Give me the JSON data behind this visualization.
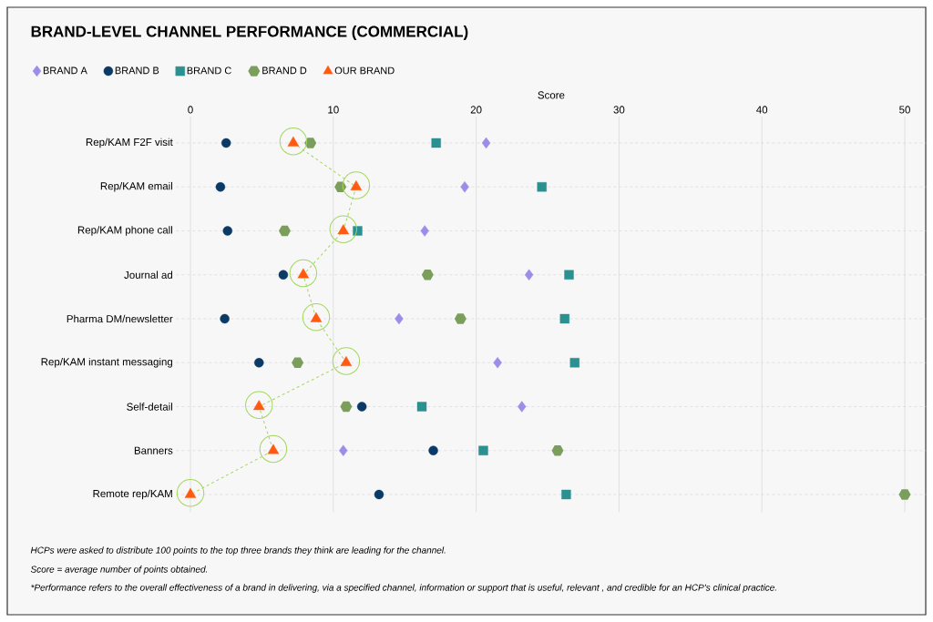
{
  "chart_data": {
    "type": "scatter",
    "title": "BRAND-LEVEL CHANNEL PERFORMANCE (COMMERCIAL)",
    "xlabel": "Score",
    "orientation": "horizontal",
    "categories": [
      "Rep/KAM F2F visit",
      "Rep/KAM email",
      "Rep/KAM phone call",
      "Journal ad",
      "Pharma DM/newsletter",
      "Rep/KAM instant messaging",
      "Self-detail",
      "Banners",
      "Remote rep/KAM"
    ],
    "series": [
      {
        "name": "BRAND A",
        "color": "#9b8ee8",
        "marker": "diamond",
        "values": [
          20.7,
          19.2,
          16.4,
          23.7,
          14.6,
          21.5,
          23.2,
          10.7,
          null
        ]
      },
      {
        "name": "BRAND B",
        "color": "#0b3a66",
        "marker": "circle",
        "values": [
          2.5,
          2.1,
          2.6,
          6.5,
          2.4,
          4.8,
          12.0,
          17.0,
          13.2
        ]
      },
      {
        "name": "BRAND C",
        "color": "#2a9090",
        "marker": "square",
        "values": [
          17.2,
          24.6,
          11.7,
          26.5,
          26.2,
          26.9,
          16.2,
          20.5,
          26.3
        ]
      },
      {
        "name": "BRAND D",
        "color": "#7b9e5c",
        "values": [
          8.4,
          10.5,
          6.6,
          16.6,
          18.9,
          7.5,
          10.9,
          25.7,
          50
        ]
      },
      {
        "name": "OUR BRAND",
        "type": "line",
        "line_style": "dashed",
        "color": "#ff5a0f",
        "marker": "triangle",
        "values": [
          7.2,
          11.6,
          10.7,
          7.9,
          8.8,
          10.9,
          4.8,
          5.8,
          0
        ]
      }
    ],
    "xlim": [
      -1,
      51.5
    ],
    "xticks": [
      0,
      10,
      20,
      30,
      40,
      50
    ],
    "grid": true,
    "legend": "top left",
    "annotations": [
      "HCPs were asked to distribute 100 points to the top three brands they think are leading for  the channel.",
      "Score = average number of points obtained.",
      "*Performance refers to the overall effectiveness of a brand in delivering, via a specified channel, information or support that is useful, relevant , and credible for an HCP’s clinical practice."
    ]
  }
}
